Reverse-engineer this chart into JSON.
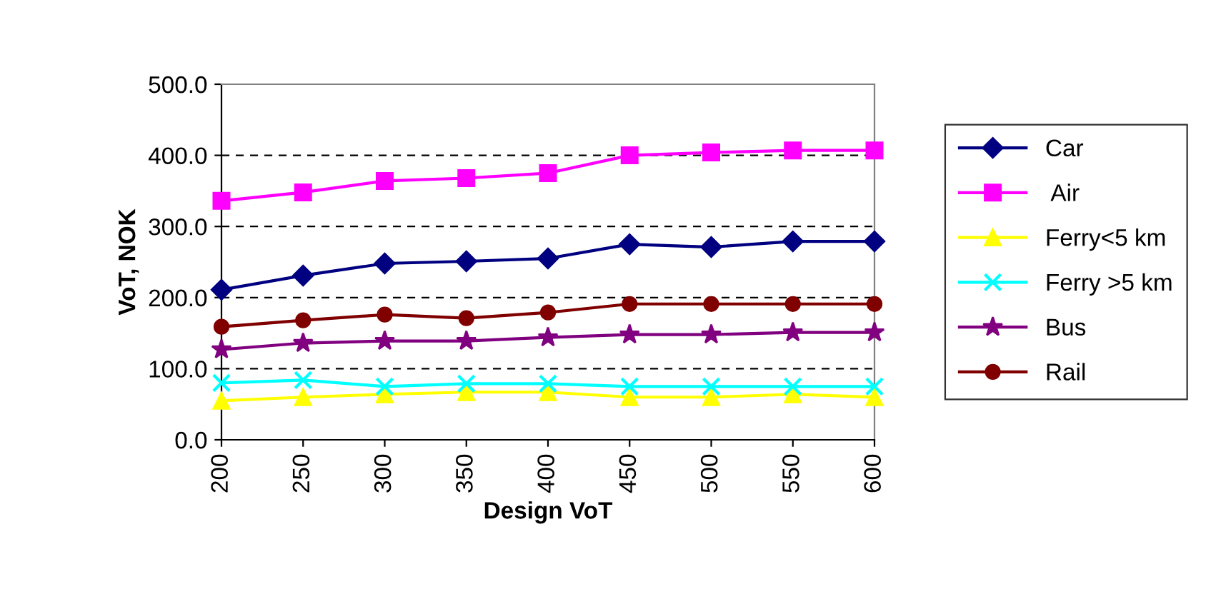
{
  "chart_data": {
    "type": "line",
    "xlabel": "Design VoT",
    "ylabel": "VoT, NOK",
    "categories": [
      "200",
      "250",
      "300",
      "350",
      "400",
      "450",
      "500",
      "550",
      "600"
    ],
    "ylim": [
      0,
      500
    ],
    "yticks": [
      {
        "value": 0,
        "label": "0.0"
      },
      {
        "value": 100,
        "label": "100.0"
      },
      {
        "value": 200,
        "label": "200.0"
      },
      {
        "value": 300,
        "label": "300.0"
      },
      {
        "value": 400,
        "label": "400.0"
      },
      {
        "value": 500,
        "label": "500.0"
      }
    ],
    "grid": "y",
    "legend": "right",
    "line_style": "solid",
    "series": [
      {
        "name": "Car",
        "color": "#000080",
        "marker": "diamond",
        "values": [
          211,
          231,
          248,
          251,
          255,
          275,
          271,
          279,
          279
        ]
      },
      {
        "name": " Air",
        "color": "#ff00ff",
        "marker": "square",
        "values": [
          336,
          348,
          364,
          368,
          375,
          400,
          404,
          407,
          407
        ]
      },
      {
        "name": "Ferry<5 km",
        "color": "#ffff00",
        "marker": "triangle",
        "values": [
          55,
          60,
          64,
          67,
          67,
          60,
          60,
          64,
          60
        ]
      },
      {
        "name": "Ferry >5 km",
        "color": "#00ffff",
        "marker": "cross",
        "values": [
          80,
          84,
          75,
          79,
          79,
          75,
          75,
          75,
          75
        ]
      },
      {
        "name": "Bus",
        "color": "#800080",
        "marker": "star",
        "values": [
          127,
          136,
          139,
          139,
          144,
          148,
          148,
          151,
          151
        ]
      },
      {
        "name": "Rail",
        "color": "#800000",
        "marker": "circle",
        "values": [
          159,
          168,
          176,
          171,
          179,
          191,
          191,
          191,
          191
        ]
      }
    ]
  }
}
